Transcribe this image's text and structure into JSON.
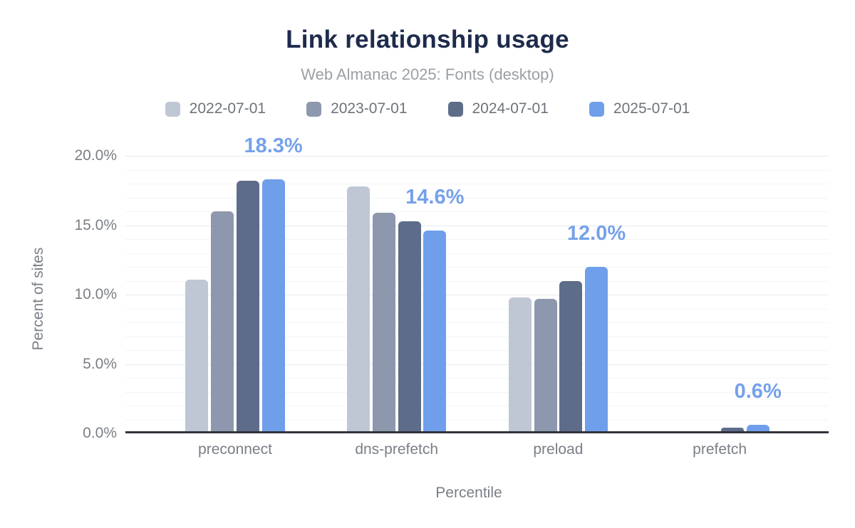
{
  "chart_data": {
    "type": "bar",
    "title": "Link relationship usage",
    "subtitle": "Web Almanac 2025: Fonts (desktop)",
    "xlabel": "Percentile",
    "ylabel": "Percent of sites",
    "categories": [
      "preconnect",
      "dns-prefetch",
      "preload",
      "prefetch"
    ],
    "series": [
      {
        "name": "2022-07-01",
        "color": "#bfc7d5",
        "values": [
          11.1,
          17.8,
          9.8,
          0.0
        ]
      },
      {
        "name": "2023-07-01",
        "color": "#8d97ad",
        "values": [
          16.0,
          15.9,
          9.7,
          0.0
        ]
      },
      {
        "name": "2024-07-01",
        "color": "#5d6c89",
        "values": [
          18.2,
          15.3,
          11.0,
          0.4
        ]
      },
      {
        "name": "2025-07-01",
        "color": "#6f9fea",
        "values": [
          18.3,
          14.6,
          12.0,
          0.6
        ]
      }
    ],
    "data_labels": {
      "on_series": "2025-07-01",
      "values": [
        "18.3%",
        "14.6%",
        "12.0%",
        "0.6%"
      ]
    },
    "y_ticks": [
      "0.0%",
      "5.0%",
      "10.0%",
      "15.0%",
      "20.0%"
    ],
    "ylim": [
      0,
      20
    ],
    "grid": {
      "minor_step_pct": 1,
      "major_step_pct": 5,
      "grid_on": true
    },
    "legend_position": "top"
  },
  "styles": {
    "background": "#ffffff",
    "title_color": "#1e2b4c",
    "subtitle_color": "#9aa0a6",
    "axis_text_color": "#7a7f86",
    "legend_text_color": "#6e737a",
    "grid_minor_color": "#f3f4f6",
    "grid_major_color": "#e7e9ec",
    "axis_line_color": "#30343a",
    "data_label_color": "#75a1eb"
  }
}
